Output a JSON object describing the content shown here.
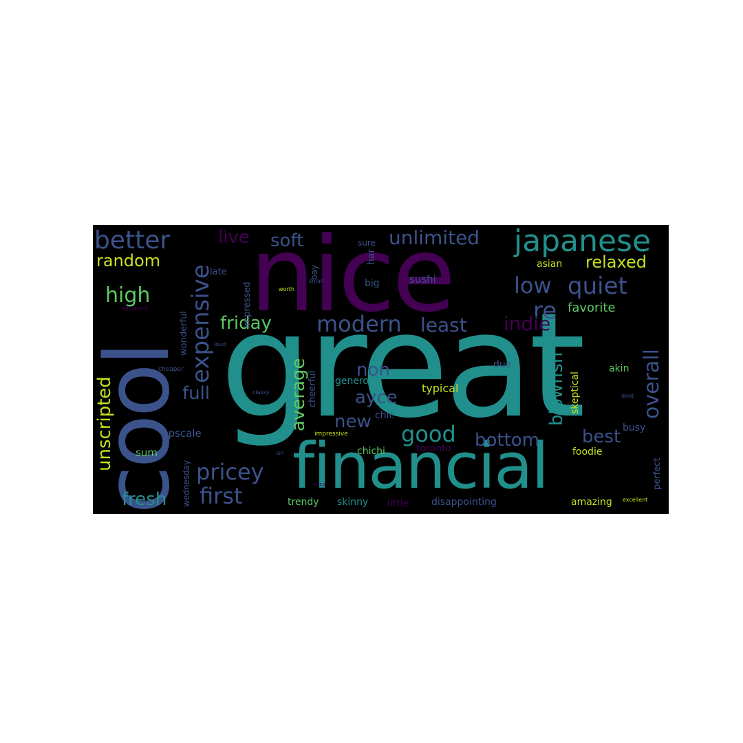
{
  "palette": {
    "purple": "#440154",
    "indigo": "#3b528b",
    "teal": "#21908d",
    "green": "#5dc963",
    "yellow": "#c7e020",
    "mint": "#35b779",
    "slate": "#2c5f8a"
  },
  "words": [
    "great",
    "nice",
    "cool",
    "financial",
    "japanese",
    "better",
    "unlimited",
    "soft",
    "live",
    "random",
    "relaxed",
    "low",
    "quiet",
    "high",
    "expensive",
    "re",
    "modern",
    "friday",
    "least",
    "indie",
    "favorite",
    "overall",
    "blowfish",
    "unscripted",
    "full",
    "average",
    "non",
    "ayce",
    "good",
    "best",
    "new",
    "pricey",
    "first",
    "bottom",
    "fresh",
    "upscale",
    "sum",
    "typical",
    "generous",
    "skeptical",
    "akin",
    "due",
    "busy",
    "foodie",
    "chichi",
    "toronto",
    "trendy",
    "skinny",
    "little",
    "disappointing",
    "amazing",
    "excellent",
    "perfect",
    "chic",
    "sushi",
    "asian",
    "late",
    "bay",
    "har",
    "sure",
    "big",
    "impressed",
    "wonderful",
    "cheerful",
    "wednesday",
    "situated",
    "cheaper",
    "classy",
    "loud",
    "worth",
    "small",
    "impressive",
    "isn",
    "dont",
    "sizes"
  ]
}
